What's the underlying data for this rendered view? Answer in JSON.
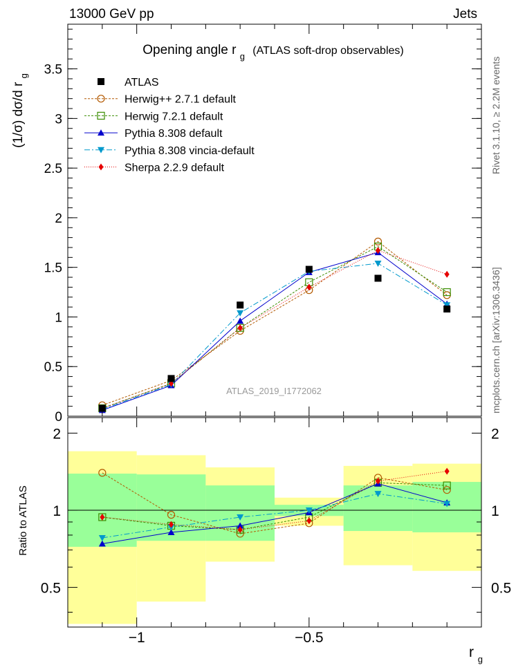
{
  "header": {
    "energy_label": "13000 GeV pp",
    "process_label": "Jets",
    "side_label_1": "Rivet 3.1.10, ≥ 2.2M events",
    "side_label_2": "mcplots.cern.ch [arXiv:1306.3436]",
    "watermark": "ATLAS_2019_I1772062"
  },
  "chart_data": [
    {
      "type": "line",
      "panel": "main",
      "title": "Opening angle r",
      "title_sub": "g",
      "title_suffix": "(ATLAS soft-drop observables)",
      "ylabel": "(1/σ) dσ/d r",
      "ylabel_sub": "g",
      "xlim": [
        -1.2,
        0.0
      ],
      "ylim": [
        0,
        3.95
      ],
      "yticks": [
        0,
        0.5,
        1,
        1.5,
        2,
        2.5,
        3,
        3.5
      ],
      "ytick_labels": [
        "0",
        "0.5",
        "1",
        "1.5",
        "2",
        "2.5",
        "3",
        "3.5"
      ],
      "x": [
        -1.1,
        -0.9,
        -0.7,
        -0.5,
        -0.3,
        -0.1
      ],
      "bin_edges": [
        -1.2,
        -1.0,
        -0.8,
        -0.6,
        -0.4,
        -0.2,
        0.0
      ],
      "data": {
        "name": "ATLAS",
        "values": [
          0.08,
          0.38,
          1.12,
          1.48,
          1.39,
          1.08
        ]
      },
      "series": [
        {
          "name": "Herwig++ 2.7.1 default",
          "color": "#b35900",
          "marker": "circle-open",
          "dash": "3,2",
          "values": [
            0.11,
            0.36,
            0.86,
            1.27,
            1.76,
            1.22
          ]
        },
        {
          "name": "Herwig 7.2.1 default",
          "color": "#3a8c00",
          "marker": "square-open",
          "dash": "3,2",
          "values": [
            0.08,
            0.33,
            0.89,
            1.35,
            1.71,
            1.25
          ]
        },
        {
          "name": "Pythia 8.308 default",
          "color": "#0000cc",
          "marker": "triangle-up",
          "dash": "",
          "values": [
            0.06,
            0.31,
            0.96,
            1.45,
            1.65,
            1.13
          ]
        },
        {
          "name": "Pythia 8.308 vincia-default",
          "color": "#0099cc",
          "marker": "triangle-down",
          "dash": "8,3,2,3",
          "values": [
            0.07,
            0.32,
            1.04,
            1.46,
            1.54,
            1.12
          ]
        },
        {
          "name": "Sherpa 2.2.9 default",
          "color": "#e60000",
          "marker": "diamond",
          "dash": "1,2",
          "values": [
            0.08,
            0.33,
            0.89,
            1.3,
            1.67,
            1.43
          ]
        }
      ]
    },
    {
      "type": "line",
      "panel": "ratio",
      "ylabel": "Ratio to ATLAS",
      "xlabel": "r",
      "xlabel_sub": "g",
      "xlim": [
        -1.2,
        0.0
      ],
      "ylim": [
        0.35,
        2.3
      ],
      "yticks": [
        0.5,
        1,
        2
      ],
      "ytick_labels": [
        "0.5",
        "1",
        "2"
      ],
      "xticks": [
        -1,
        -0.5
      ],
      "xtick_labels": [
        "−1",
        "−0.5"
      ],
      "bin_edges": [
        -1.2,
        -1.0,
        -0.8,
        -0.6,
        -0.4,
        -0.2,
        0.0
      ],
      "band_inner": [
        [
          0.72,
          1.39
        ],
        [
          0.76,
          1.38
        ],
        [
          0.76,
          1.25
        ],
        [
          0.95,
          1.05
        ],
        [
          0.83,
          1.25
        ],
        [
          0.82,
          1.29
        ]
      ],
      "band_outer": [
        [
          0.36,
          1.7
        ],
        [
          0.44,
          1.64
        ],
        [
          0.63,
          1.47
        ],
        [
          0.87,
          1.12
        ],
        [
          0.61,
          1.49
        ],
        [
          0.58,
          1.52
        ]
      ],
      "x": [
        -1.1,
        -0.9,
        -0.7,
        -0.5,
        -0.3,
        -0.1
      ],
      "series": [
        {
          "name": "Herwig++ 2.7.1 default",
          "values": [
            1.4,
            0.96,
            0.81,
            0.89,
            1.34,
            1.2
          ]
        },
        {
          "name": "Herwig 7.2.1 default",
          "values": [
            0.94,
            0.87,
            0.84,
            0.94,
            1.28,
            1.25
          ]
        },
        {
          "name": "Pythia 8.308 default",
          "values": [
            0.74,
            0.82,
            0.87,
            0.98,
            1.27,
            1.07
          ]
        },
        {
          "name": "Pythia 8.308 vincia-default",
          "values": [
            0.78,
            0.86,
            0.94,
            1.0,
            1.16,
            1.06
          ]
        },
        {
          "name": "Sherpa 2.2.9 default",
          "values": [
            0.94,
            0.88,
            0.84,
            0.91,
            1.3,
            1.42
          ]
        }
      ]
    }
  ]
}
